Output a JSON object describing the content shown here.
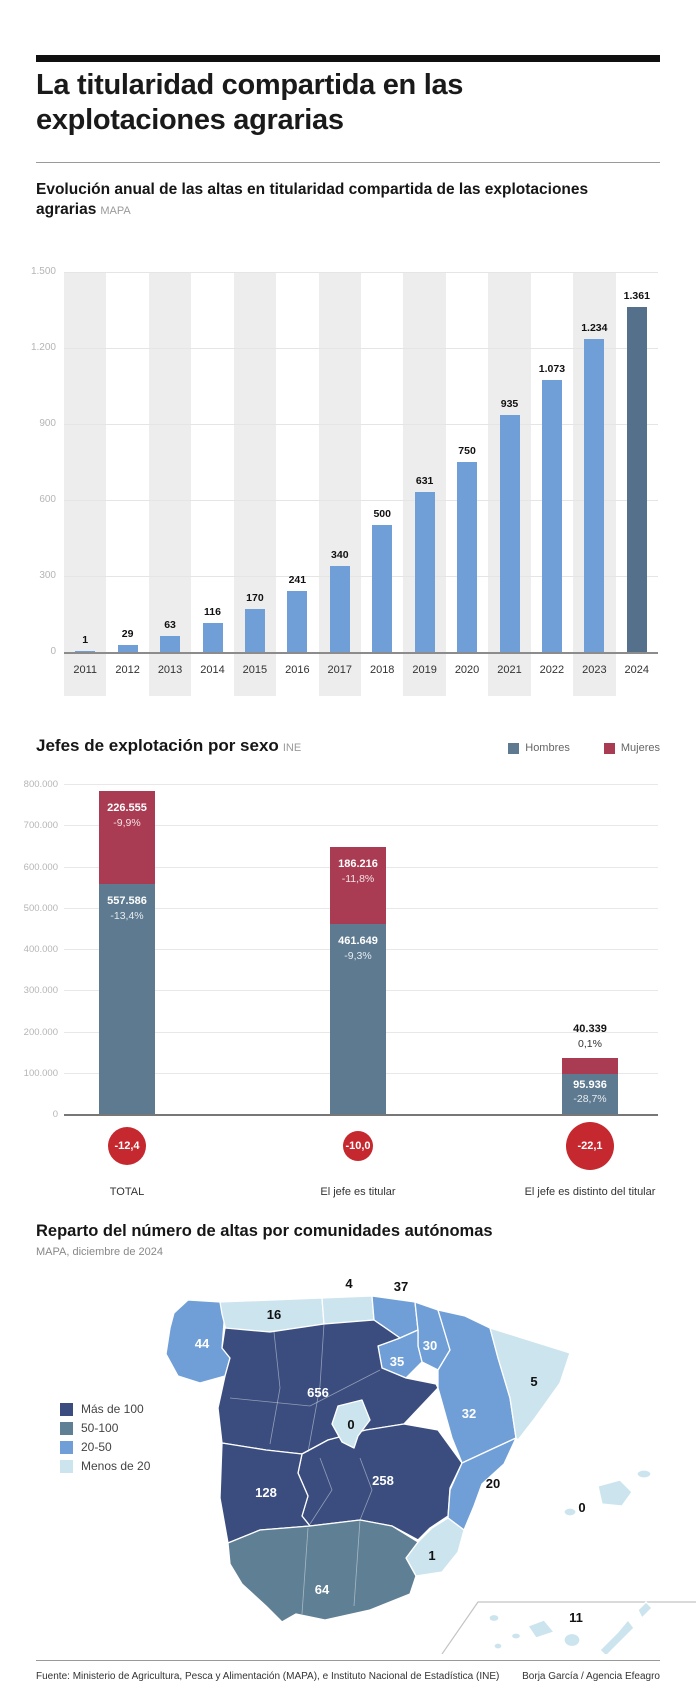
{
  "page": {
    "title": "La titularidad compartida en las explotaciones agrarias",
    "footer_source": "Fuente: Ministerio de Agricultura, Pesca y Alimentación (MAPA), e Instituto Nacional de Estadística (INE)",
    "footer_credit": "Borja García / Agencia Efeagro"
  },
  "section1": {
    "title": "Evolución anual de las altas en titularidad compartida de las explotaciones agrarias",
    "source": "MAPA"
  },
  "section2": {
    "title": "Jefes de explotación por sexo",
    "source": "INE"
  },
  "section3": {
    "title": "Reparto del número de altas por comunidades autónomas",
    "source": "MAPA, diciembre de 2024"
  },
  "chart_data": [
    {
      "type": "bar",
      "title": "Evolución anual de las altas en titularidad compartida de las explotaciones agrarias",
      "source": "MAPA",
      "categories": [
        "2011",
        "2012",
        "2013",
        "2014",
        "2015",
        "2016",
        "2017",
        "2018",
        "2019",
        "2020",
        "2021",
        "2022",
        "2023",
        "2024"
      ],
      "values": [
        1,
        29,
        63,
        116,
        170,
        241,
        340,
        500,
        631,
        750,
        935,
        1073,
        1234,
        1361
      ],
      "value_labels": [
        "1",
        "29",
        "63",
        "116",
        "170",
        "241",
        "340",
        "500",
        "631",
        "750",
        "935",
        "1.073",
        "1.234",
        "1.361"
      ],
      "ylim": [
        0,
        1500
      ],
      "yticks": [
        "1.500",
        "1.200",
        "900",
        "600",
        "300",
        "0"
      ],
      "bar_color": "#6f9fd6",
      "last_bar_color": "#54708a",
      "grid": "on",
      "stripe_color": "#ededed"
    },
    {
      "type": "stacked-bar",
      "title": "Jefes de explotación por sexo",
      "source": "INE",
      "categories": [
        "TOTAL",
        "El jefe es titular",
        "El jefe es distinto del titular"
      ],
      "series": [
        {
          "name": "Hombres",
          "color": "#5d7a90",
          "values": [
            557586,
            461649,
            95936
          ],
          "value_labels": [
            "557.586",
            "461.649",
            "95.936"
          ],
          "pct_labels": [
            "-13,4%",
            "-9,3%",
            "-28,7%"
          ]
        },
        {
          "name": "Mujeres",
          "color": "#a93c53",
          "values": [
            226555,
            186216,
            40339
          ],
          "value_labels": [
            "226.555",
            "186.216",
            "40.339"
          ],
          "pct_labels": [
            "-9,9%",
            "-11,8%",
            "0,1%"
          ]
        }
      ],
      "ylim": [
        0,
        800000
      ],
      "yticks": [
        "800.000",
        "700.000",
        "600.000",
        "500.000",
        "400.000",
        "300.000",
        "200.000",
        "100.000",
        "0"
      ],
      "legend_position": "top-right",
      "circle_color": "#c5292f",
      "change_circles": [
        {
          "label": "-12,4",
          "radius": 19
        },
        {
          "label": "-10,0",
          "radius": 15
        },
        {
          "label": "-22,1",
          "radius": 24
        }
      ]
    },
    {
      "type": "choropleth-map",
      "title": "Reparto del número de altas por comunidades autónomas",
      "source": "MAPA, diciembre de 2024",
      "legend": [
        {
          "label": "Más de 100",
          "color": "#3a4d7e"
        },
        {
          "label": "50-100",
          "color": "#5f7f94"
        },
        {
          "label": "20-50",
          "color": "#6f9fd6"
        },
        {
          "label": "Menos de 20",
          "color": "#cbe4ee"
        }
      ],
      "regions": [
        {
          "name": "Galicia",
          "value": "44",
          "bucket": "20-50"
        },
        {
          "name": "Asturias",
          "value": "16",
          "bucket": "Menos de 20"
        },
        {
          "name": "Cantabria",
          "value": "4",
          "bucket": "Menos de 20"
        },
        {
          "name": "País Vasco",
          "value": "37",
          "bucket": "20-50"
        },
        {
          "name": "Navarra",
          "value": "30",
          "bucket": "20-50"
        },
        {
          "name": "La Rioja",
          "value": "35",
          "bucket": "20-50"
        },
        {
          "name": "Aragón",
          "value": "32",
          "bucket": "20-50"
        },
        {
          "name": "Cataluña",
          "value": "5",
          "bucket": "Menos de 20"
        },
        {
          "name": "Castilla y León",
          "value": "656",
          "bucket": "Más de 100"
        },
        {
          "name": "Madrid",
          "value": "0",
          "bucket": "Menos de 20"
        },
        {
          "name": "Castilla-La Mancha",
          "value": "258",
          "bucket": "Más de 100"
        },
        {
          "name": "Comunidad Valenciana",
          "value": "20",
          "bucket": "20-50"
        },
        {
          "name": "Extremadura",
          "value": "128",
          "bucket": "Más de 100"
        },
        {
          "name": "Andalucía",
          "value": "64",
          "bucket": "50-100"
        },
        {
          "name": "Murcia",
          "value": "1",
          "bucket": "Menos de 20"
        },
        {
          "name": "Baleares",
          "value": "0",
          "bucket": "Menos de 20"
        },
        {
          "name": "Canarias",
          "value": "11",
          "bucket": "Menos de 20"
        }
      ]
    }
  ]
}
